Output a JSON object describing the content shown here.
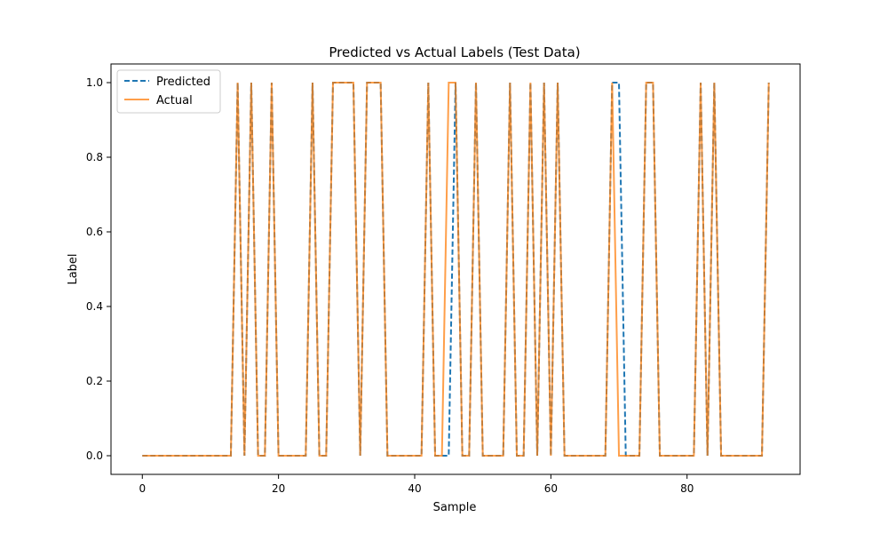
{
  "chart_data": {
    "type": "line",
    "title": "Predicted vs Actual Labels (Test Data)",
    "xlabel": "Sample",
    "ylabel": "Label",
    "xlim": [
      -4.6,
      96.6
    ],
    "ylim": [
      -0.05,
      1.05
    ],
    "x_ticks": [
      0,
      20,
      40,
      60,
      80
    ],
    "x_tick_labels": [
      "0",
      "20",
      "40",
      "60",
      "80"
    ],
    "y_ticks": [
      0.0,
      0.2,
      0.4,
      0.6,
      0.8,
      1.0
    ],
    "y_tick_labels": [
      "0.0",
      "0.2",
      "0.4",
      "0.6",
      "0.8",
      "1.0"
    ],
    "grid": false,
    "legend_position": "upper-left",
    "series": [
      {
        "name": "Predicted",
        "color": "#1f77b4",
        "style": "dashed",
        "values": [
          0,
          0,
          0,
          0,
          0,
          0,
          0,
          0,
          0,
          0,
          0,
          0,
          0,
          0,
          1,
          0,
          1,
          0,
          0,
          1,
          0,
          0,
          0,
          0,
          0,
          1,
          0,
          0,
          1,
          1,
          1,
          1,
          0,
          1,
          1,
          1,
          0,
          0,
          0,
          0,
          0,
          0,
          1,
          0,
          0,
          0,
          1,
          0,
          0,
          1,
          0,
          0,
          0,
          0,
          1,
          0,
          0,
          1,
          0,
          1,
          0,
          1,
          0,
          0,
          0,
          0,
          0,
          0,
          0,
          1,
          1,
          0,
          0,
          0,
          1,
          1,
          0,
          0,
          0,
          0,
          0,
          0,
          1,
          0,
          1,
          0,
          0,
          0,
          0,
          0,
          0,
          0,
          1
        ]
      },
      {
        "name": "Actual",
        "color": "#ff7f0e",
        "style": "solid",
        "values": [
          0,
          0,
          0,
          0,
          0,
          0,
          0,
          0,
          0,
          0,
          0,
          0,
          0,
          0,
          1,
          0,
          1,
          0,
          0,
          1,
          0,
          0,
          0,
          0,
          0,
          1,
          0,
          0,
          1,
          1,
          1,
          1,
          0,
          1,
          1,
          1,
          0,
          0,
          0,
          0,
          0,
          0,
          1,
          0,
          0,
          1,
          1,
          0,
          0,
          1,
          0,
          0,
          0,
          0,
          1,
          0,
          0,
          1,
          0,
          1,
          0,
          1,
          0,
          0,
          0,
          0,
          0,
          0,
          0,
          1,
          0,
          0,
          0,
          0,
          1,
          1,
          0,
          0,
          0,
          0,
          0,
          0,
          1,
          0,
          1,
          0,
          0,
          0,
          0,
          0,
          0,
          0,
          1
        ]
      }
    ]
  }
}
